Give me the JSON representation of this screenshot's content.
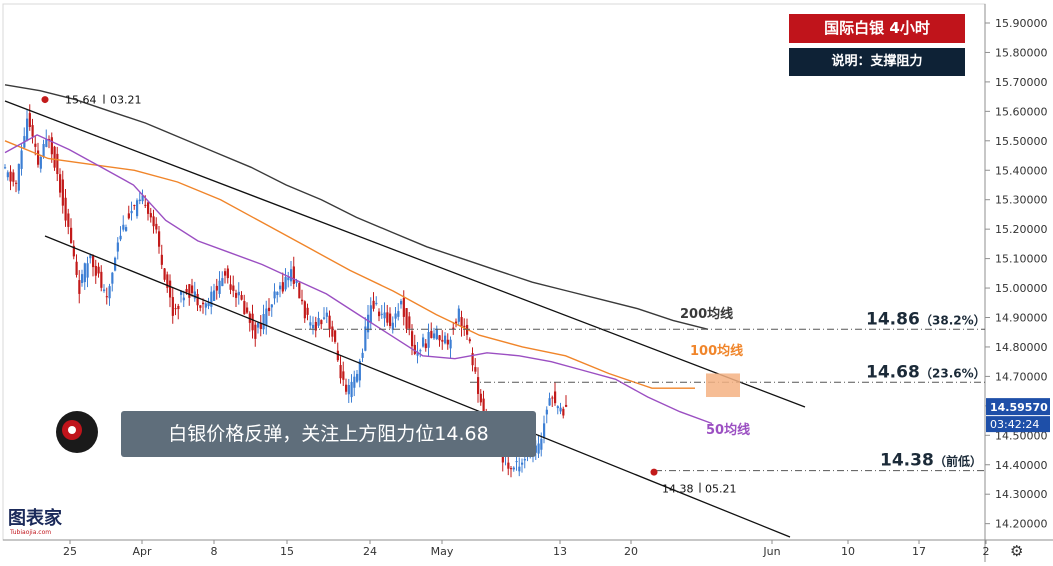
{
  "header": {
    "title": "国际白银 4小时",
    "subtitle": "说明：支撑阻力"
  },
  "callout": {
    "text": "白银价格反弹，关注上方阻力位14.68"
  },
  "watermark": {
    "brand_text": "图表家",
    "brand_sub": "Tubiaojia.com"
  },
  "icons": {
    "logo": "helmet-head-logo-icon",
    "settings": "gear-icon"
  },
  "colors": {
    "bull": "#3d7fd4",
    "bear": "#c21a1a",
    "ma50": "#9b4fc2",
    "ma100": "#f0852a",
    "ma200": "#3a3a3a",
    "channel": "#111111",
    "title_bg": "#c0141b",
    "subtitle_bg": "#0e2236",
    "last_price_bg": "#1e4fa8",
    "zone_fill": "#f5b183"
  },
  "chart_data": {
    "type": "line",
    "title": "国际白银 4小时",
    "ylim": [
      14.13,
      15.95
    ],
    "y_ticks": [
      "15.90000",
      "15.80000",
      "15.70000",
      "15.60000",
      "15.50000",
      "15.40000",
      "15.30000",
      "15.20000",
      "15.10000",
      "15.00000",
      "14.90000",
      "14.80000",
      "14.70000",
      "14.60000",
      "14.50000",
      "14.40000",
      "14.30000",
      "14.20000"
    ],
    "x_tick_labels": [
      "25",
      "Apr",
      "8",
      "15",
      "24",
      "May",
      "13",
      "20",
      "Jun",
      "10",
      "17",
      "2"
    ],
    "last_price": "14.59570",
    "countdown": "03:42:24",
    "series": [
      {
        "name": "200均线",
        "values": [
          15.69,
          15.67,
          15.64,
          15.6,
          15.56,
          15.51,
          15.46,
          15.41,
          15.35,
          15.3,
          15.24,
          15.19,
          15.14,
          15.1,
          15.06,
          15.02,
          14.99,
          14.96,
          14.93,
          14.89,
          14.86
        ]
      },
      {
        "name": "100均线",
        "values": [
          15.5,
          15.44,
          15.42,
          15.4,
          15.36,
          15.3,
          15.22,
          15.14,
          15.06,
          14.99,
          14.91,
          14.84,
          14.8,
          14.77,
          14.71,
          14.66,
          14.66
        ]
      },
      {
        "name": "50均线",
        "values": [
          15.46,
          15.52,
          15.47,
          15.41,
          15.35,
          15.23,
          15.16,
          15.12,
          15.08,
          15.03,
          14.98,
          14.91,
          14.84,
          14.77,
          14.76,
          14.78,
          14.77,
          14.75,
          14.72,
          14.69,
          14.63,
          14.58,
          14.54
        ]
      }
    ],
    "levels": [
      {
        "value": "14.86",
        "label": "（38.2%）"
      },
      {
        "value": "14.68",
        "label": "（23.6%）"
      },
      {
        "value": "14.38",
        "label": "（前低）"
      }
    ],
    "annotations": [
      {
        "price": "15.64",
        "date": "03.21"
      },
      {
        "price": "14.38",
        "date": "05.21"
      }
    ],
    "ma_labels": [
      "200均线",
      "100均线",
      "50均线"
    ]
  }
}
